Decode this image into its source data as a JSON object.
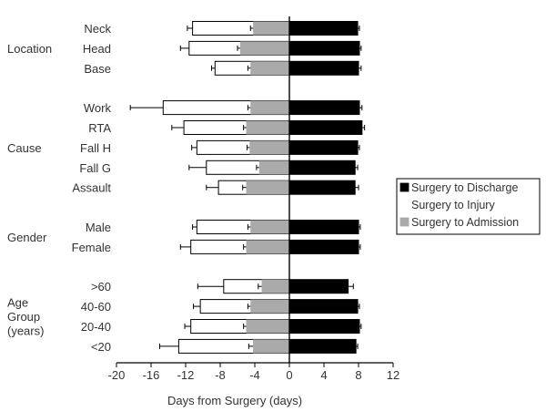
{
  "chart_data": {
    "type": "bar",
    "orientation": "horizontal",
    "stacked": "diverging",
    "xlabel": "Days from Surgery (days)",
    "xlim": [
      -20,
      12
    ],
    "xticks": [
      -20,
      -16,
      -12,
      -8,
      -4,
      0,
      4,
      8,
      12
    ],
    "legend": {
      "placement": "right",
      "items": [
        {
          "label": "Surgery to Discharge",
          "color": "#000000"
        },
        {
          "label": "Surgery to Injury",
          "color": "#ffffff"
        },
        {
          "label": "Surgery to Admission",
          "color": "#aaaaaa"
        }
      ]
    },
    "groups": [
      {
        "label": [
          "Location"
        ],
        "categories": [
          {
            "label": "Neck",
            "discharge": 7.9,
            "discharge_err": 0.2,
            "injury": -11.2,
            "injury_err": 0.6,
            "admission": -4.2,
            "admission_err": 0.3
          },
          {
            "label": "Head",
            "discharge": 8.1,
            "discharge_err": 0.2,
            "injury": -11.6,
            "injury_err": 1.0,
            "admission": -5.7,
            "admission_err": 0.3
          },
          {
            "label": "Base",
            "discharge": 8.0,
            "discharge_err": 0.3,
            "injury": -8.6,
            "injury_err": 0.4,
            "admission": -4.5,
            "admission_err": 0.3
          }
        ]
      },
      {
        "label": [
          "Cause"
        ],
        "categories": [
          {
            "label": "Work",
            "discharge": 8.1,
            "discharge_err": 0.3,
            "injury": -14.6,
            "injury_err": 3.8,
            "admission": -4.5,
            "admission_err": 0.3
          },
          {
            "label": "RTA",
            "discharge": 8.4,
            "discharge_err": 0.3,
            "injury": -12.2,
            "injury_err": 1.4,
            "admission": -5.0,
            "admission_err": 0.3
          },
          {
            "label": "Fall H",
            "discharge": 7.9,
            "discharge_err": 0.2,
            "injury": -10.7,
            "injury_err": 0.6,
            "admission": -4.6,
            "admission_err": 0.3
          },
          {
            "label": "Fall G",
            "discharge": 7.6,
            "discharge_err": 0.3,
            "injury": -9.6,
            "injury_err": 2.0,
            "admission": -3.5,
            "admission_err": 0.3
          },
          {
            "label": "Assault",
            "discharge": 7.6,
            "discharge_err": 0.4,
            "injury": -8.2,
            "injury_err": 1.4,
            "admission": -5.0,
            "admission_err": 0.4
          }
        ]
      },
      {
        "label": [
          "Gender"
        ],
        "categories": [
          {
            "label": "Male",
            "discharge": 8.0,
            "discharge_err": 0.2,
            "injury": -10.7,
            "injury_err": 0.5,
            "admission": -4.5,
            "admission_err": 0.3
          },
          {
            "label": "Female",
            "discharge": 8.0,
            "discharge_err": 0.2,
            "injury": -11.4,
            "injury_err": 1.2,
            "admission": -5.0,
            "admission_err": 0.3
          }
        ]
      },
      {
        "label": [
          "Age",
          "Group",
          "(years)"
        ],
        "categories": [
          {
            "label": ">60",
            "discharge": 6.8,
            "discharge_err": 0.6,
            "injury": -7.6,
            "injury_err": 3.0,
            "admission": -3.2,
            "admission_err": 0.4
          },
          {
            "label": "40-60",
            "discharge": 7.9,
            "discharge_err": 0.2,
            "injury": -10.3,
            "injury_err": 0.8,
            "admission": -4.5,
            "admission_err": 0.3
          },
          {
            "label": "20-40",
            "discharge": 8.1,
            "discharge_err": 0.2,
            "injury": -11.4,
            "injury_err": 0.7,
            "admission": -5.0,
            "admission_err": 0.3
          },
          {
            "label": "<20",
            "discharge": 7.7,
            "discharge_err": 0.2,
            "injury": -12.8,
            "injury_err": 2.2,
            "admission": -4.2,
            "admission_err": 0.5
          }
        ]
      }
    ]
  }
}
